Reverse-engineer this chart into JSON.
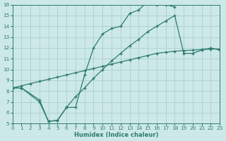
{
  "xlabel": "Humidex (Indice chaleur)",
  "bg_color": "#cde8e8",
  "line_color": "#2d7d6e",
  "grid_color": "#aacfcf",
  "line1_x": [
    0,
    1,
    3,
    4,
    5,
    6,
    7,
    8,
    9,
    10,
    11,
    12,
    13,
    14,
    15,
    16,
    17,
    18
  ],
  "line1_y": [
    8.3,
    8.3,
    7.0,
    5.2,
    5.3,
    6.5,
    6.5,
    9.5,
    12.0,
    13.3,
    13.8,
    14.0,
    15.2,
    15.5,
    16.3,
    16.0,
    16.0,
    15.8
  ],
  "line2_x": [
    0,
    1,
    3,
    4,
    5,
    6,
    7,
    8,
    9,
    10,
    11,
    12,
    13,
    14,
    15,
    16,
    17,
    18,
    19,
    20,
    21,
    22,
    23
  ],
  "line2_y": [
    8.3,
    8.3,
    7.2,
    5.2,
    5.3,
    6.5,
    7.5,
    8.3,
    9.2,
    10.0,
    10.8,
    11.5,
    12.2,
    12.8,
    13.5,
    14.0,
    14.5,
    15.0,
    11.5,
    11.5,
    11.8,
    12.0,
    11.8
  ],
  "line3_x": [
    0,
    1,
    2,
    3,
    4,
    5,
    6,
    7,
    8,
    9,
    10,
    11,
    12,
    13,
    14,
    15,
    16,
    17,
    18,
    19,
    20,
    21,
    22,
    23
  ],
  "line3_y": [
    8.3,
    8.5,
    8.7,
    8.9,
    9.1,
    9.3,
    9.5,
    9.7,
    9.9,
    10.1,
    10.3,
    10.5,
    10.7,
    10.9,
    11.1,
    11.3,
    11.5,
    11.6,
    11.7,
    11.75,
    11.8,
    11.85,
    11.9,
    11.9
  ],
  "xlim": [
    0,
    23
  ],
  "ylim": [
    5,
    16
  ],
  "yticks": [
    5,
    6,
    7,
    8,
    9,
    10,
    11,
    12,
    13,
    14,
    15,
    16
  ],
  "xticks": [
    0,
    1,
    2,
    3,
    4,
    5,
    6,
    7,
    8,
    9,
    10,
    11,
    12,
    13,
    14,
    15,
    16,
    17,
    18,
    19,
    20,
    21,
    22,
    23
  ]
}
